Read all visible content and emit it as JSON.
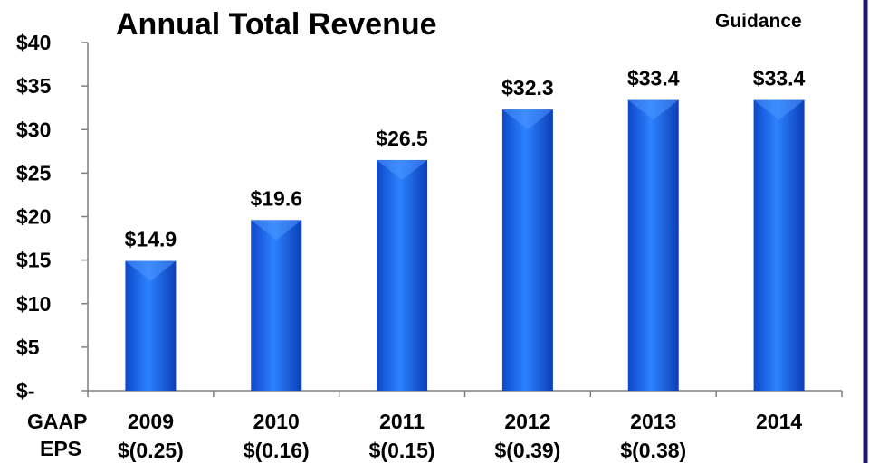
{
  "chart_data": {
    "type": "bar",
    "title": "Annual Total Revenue",
    "annotation": "Guidance",
    "categories": [
      "2009",
      "2010",
      "2011",
      "2012",
      "2013",
      "2014"
    ],
    "values": [
      14.9,
      19.6,
      26.5,
      32.3,
      33.4,
      33.4
    ],
    "data_labels": [
      "$14.9",
      "$19.6",
      "$26.5",
      "$32.3",
      "$33.4",
      "$33.4"
    ],
    "y_ticks": [
      0,
      5,
      10,
      15,
      20,
      25,
      30,
      35,
      40
    ],
    "y_tick_labels": [
      "$-",
      "$5",
      "$10",
      "$15",
      "$20",
      "$25",
      "$30",
      "$35",
      "$40"
    ],
    "ylim": [
      0,
      40
    ],
    "grid": false,
    "legend": "none",
    "bar_color": "#1f6ef0",
    "eps_row": {
      "label_line1": "GAAP",
      "label_line2": "EPS",
      "values": [
        "$(0.25)",
        "$(0.16)",
        "$(0.15)",
        "$(0.39)",
        "$(0.38)",
        ""
      ]
    },
    "frame_color": "#1a1a6e"
  }
}
